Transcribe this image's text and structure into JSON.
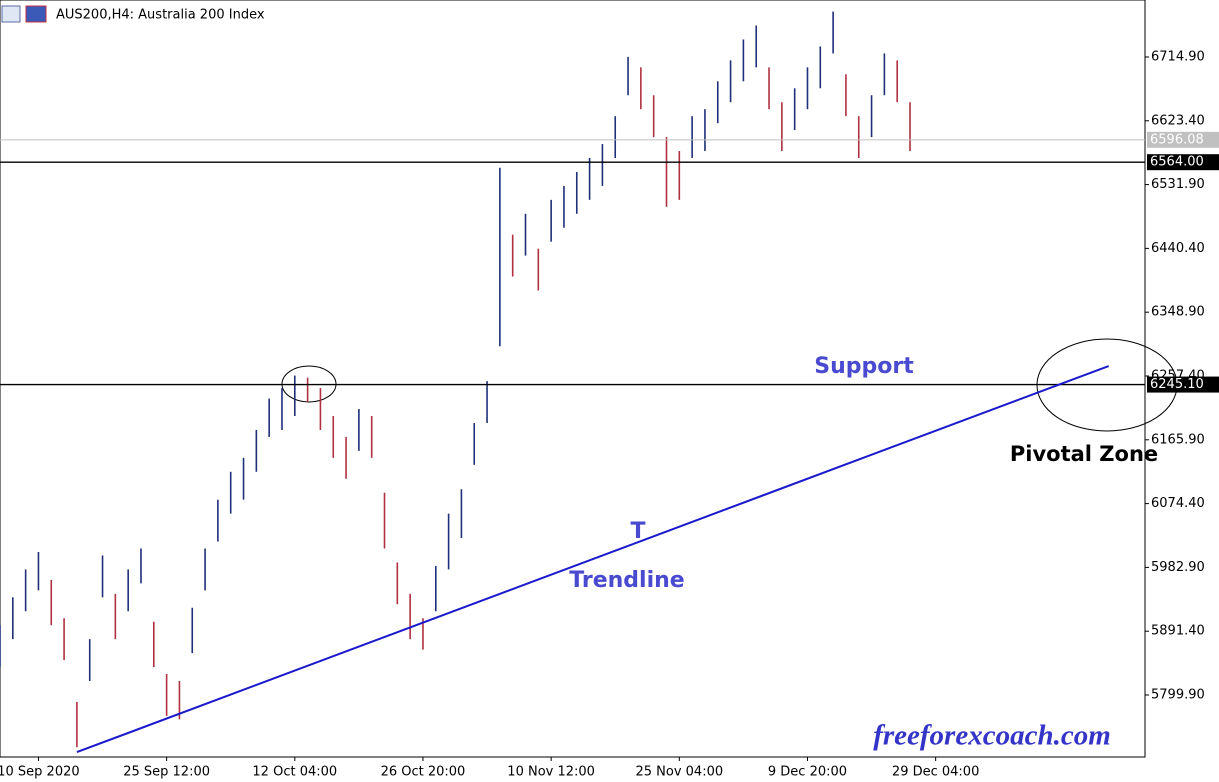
{
  "chart_data": {
    "type": "ohlc",
    "title": "AUS200,H4:  Australia 200 Index",
    "watermark": "freeforexcoach.com",
    "annotations": {
      "support": "Support",
      "t": "T",
      "trendline": "Trendline",
      "pivotal_zone": "Pivotal Zone"
    },
    "x": [
      0,
      3,
      6,
      9,
      12,
      15,
      18,
      21,
      24,
      27,
      30,
      33,
      36,
      39,
      42,
      45,
      48,
      51,
      54,
      57,
      60,
      63,
      66,
      69,
      72,
      75,
      78,
      81,
      84,
      87,
      90,
      93,
      96,
      99,
      102,
      105,
      108,
      111,
      114,
      117,
      120,
      123,
      126,
      129,
      132,
      135,
      138,
      141,
      144,
      147,
      150,
      153,
      156,
      159,
      162,
      165,
      168,
      171,
      174,
      177,
      180,
      183,
      186,
      189,
      192,
      195,
      198,
      201,
      204,
      207,
      210,
      213
    ],
    "high": [
      5900,
      5940,
      5980,
      6005,
      5965,
      5910,
      5790,
      5880,
      6000,
      5945,
      5980,
      6010,
      5905,
      5830,
      5820,
      5925,
      6010,
      6080,
      6120,
      6140,
      6180,
      6225,
      6240,
      6258,
      6255,
      6240,
      6200,
      6170,
      6210,
      6200,
      6090,
      5990,
      5945,
      5910,
      5985,
      6060,
      6095,
      6190,
      6250,
      6556,
      6460,
      6490,
      6440,
      6510,
      6530,
      6550,
      6570,
      6590,
      6630,
      6715,
      6700,
      6660,
      6600,
      6580,
      6630,
      6640,
      6680,
      6710,
      6740,
      6760,
      6700,
      6650,
      6670,
      6700,
      6730,
      6780,
      6690,
      6630,
      6660,
      6720,
      6710,
      6650
    ],
    "low": [
      5840,
      5880,
      5920,
      5950,
      5900,
      5850,
      5725,
      5820,
      5940,
      5880,
      5920,
      5960,
      5840,
      5770,
      5765,
      5860,
      5950,
      6020,
      6060,
      6080,
      6120,
      6170,
      6180,
      6200,
      6220,
      6180,
      6140,
      6110,
      6150,
      6140,
      6010,
      5930,
      5880,
      5865,
      5920,
      5980,
      6025,
      6130,
      6190,
      6300,
      6400,
      6430,
      6380,
      6450,
      6470,
      6490,
      6510,
      6530,
      6570,
      6660,
      6640,
      6600,
      6500,
      6510,
      6570,
      6580,
      6620,
      6650,
      6680,
      6700,
      6640,
      6580,
      6610,
      6640,
      6670,
      6720,
      6630,
      6570,
      6600,
      6660,
      6650,
      6580
    ],
    "xlim": [
      0,
      268
    ],
    "ylim": [
      5711,
      6796.6
    ],
    "xticks": [
      {
        "value": 9,
        "label": "10 Sep 2020"
      },
      {
        "value": 39,
        "label": "25 Sep 12:00"
      },
      {
        "value": 69,
        "label": "12 Oct 04:00"
      },
      {
        "value": 99,
        "label": "26 Oct 20:00"
      },
      {
        "value": 129,
        "label": "10 Nov 12:00"
      },
      {
        "value": 159,
        "label": "25 Nov 04:00"
      },
      {
        "value": 189,
        "label": "9 Dec 20:00"
      },
      {
        "value": 219,
        "label": "29 Dec 04:00"
      }
    ],
    "yticks": [
      {
        "value": 6714.9,
        "label": "6714.90"
      },
      {
        "value": 6623.4,
        "label": "6623.40"
      },
      {
        "value": 6531.9,
        "label": "6531.90"
      },
      {
        "value": 6440.4,
        "label": "6440.40"
      },
      {
        "value": 6348.9,
        "label": "6348.90"
      },
      {
        "value": 6257.4,
        "label": "6257.40"
      },
      {
        "value": 6165.9,
        "label": "6165.90"
      },
      {
        "value": 6074.4,
        "label": "6074.40"
      },
      {
        "value": 5982.9,
        "label": "5982.90"
      },
      {
        "value": 5891.4,
        "label": "5891.40"
      },
      {
        "value": 5799.9,
        "label": "5799.90"
      }
    ],
    "levels": [
      {
        "value": 6596.08,
        "color": "#c0c0c0"
      },
      {
        "value": 6564,
        "label": "6564.00",
        "color": "#000000"
      },
      {
        "value": 6245.1,
        "label": "6245.10",
        "color": "#000000"
      }
    ],
    "trend": {
      "x": [
        18,
        259.5
      ],
      "values": [
        5718,
        6271.7
      ],
      "color": "#1a1acc"
    },
    "colors": {
      "up": "#1f2f7a",
      "down": "#b03040"
    }
  }
}
